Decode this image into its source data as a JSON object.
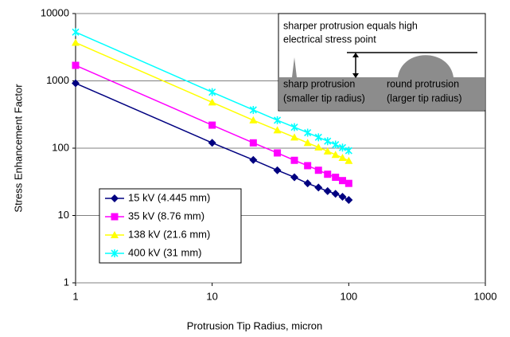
{
  "chart_data": {
    "type": "line",
    "x_label": "Protrusion Tip Radius, micron",
    "y_label": "Stress Enhancement Factor",
    "x": [
      1,
      10,
      20,
      30,
      40,
      50,
      60,
      70,
      80,
      90,
      100
    ],
    "series": [
      {
        "name": "15 kV (4.445 mm)",
        "color": "#000080",
        "marker": "diamond",
        "values": [
          920,
          120,
          67,
          47,
          37,
          30,
          26,
          23,
          21,
          19,
          17
        ]
      },
      {
        "name": "35 kV (8.76 mm)",
        "color": "#ff00ff",
        "marker": "square",
        "values": [
          1700,
          220,
          120,
          85,
          66,
          55,
          47,
          41,
          37,
          33,
          30
        ]
      },
      {
        "name": "138 kV (21.6 mm)",
        "color": "#ffff00",
        "marker": "triangle",
        "values": [
          3700,
          480,
          260,
          185,
          145,
          120,
          103,
          90,
          80,
          72,
          65
        ]
      },
      {
        "name": "400 kV (31 mm)",
        "color": "#00ffff",
        "marker": "x",
        "values": [
          5300,
          680,
          370,
          260,
          205,
          170,
          145,
          127,
          113,
          102,
          92
        ]
      }
    ],
    "xlim": [
      1,
      1000
    ],
    "xticks": [
      1,
      10,
      100,
      1000
    ],
    "ylim": [
      1,
      10000
    ],
    "yticks": [
      1,
      10,
      100,
      1000,
      10000
    ],
    "log_x": true,
    "log_y": true,
    "grid": true,
    "inset": {
      "title": [
        "sharper protrusion equals high",
        "electrical stress point"
      ],
      "left_label": [
        "sharp protrusion",
        "(smaller tip radius)"
      ],
      "right_label": [
        "round protrusion",
        "(larger tip radius)"
      ]
    }
  }
}
